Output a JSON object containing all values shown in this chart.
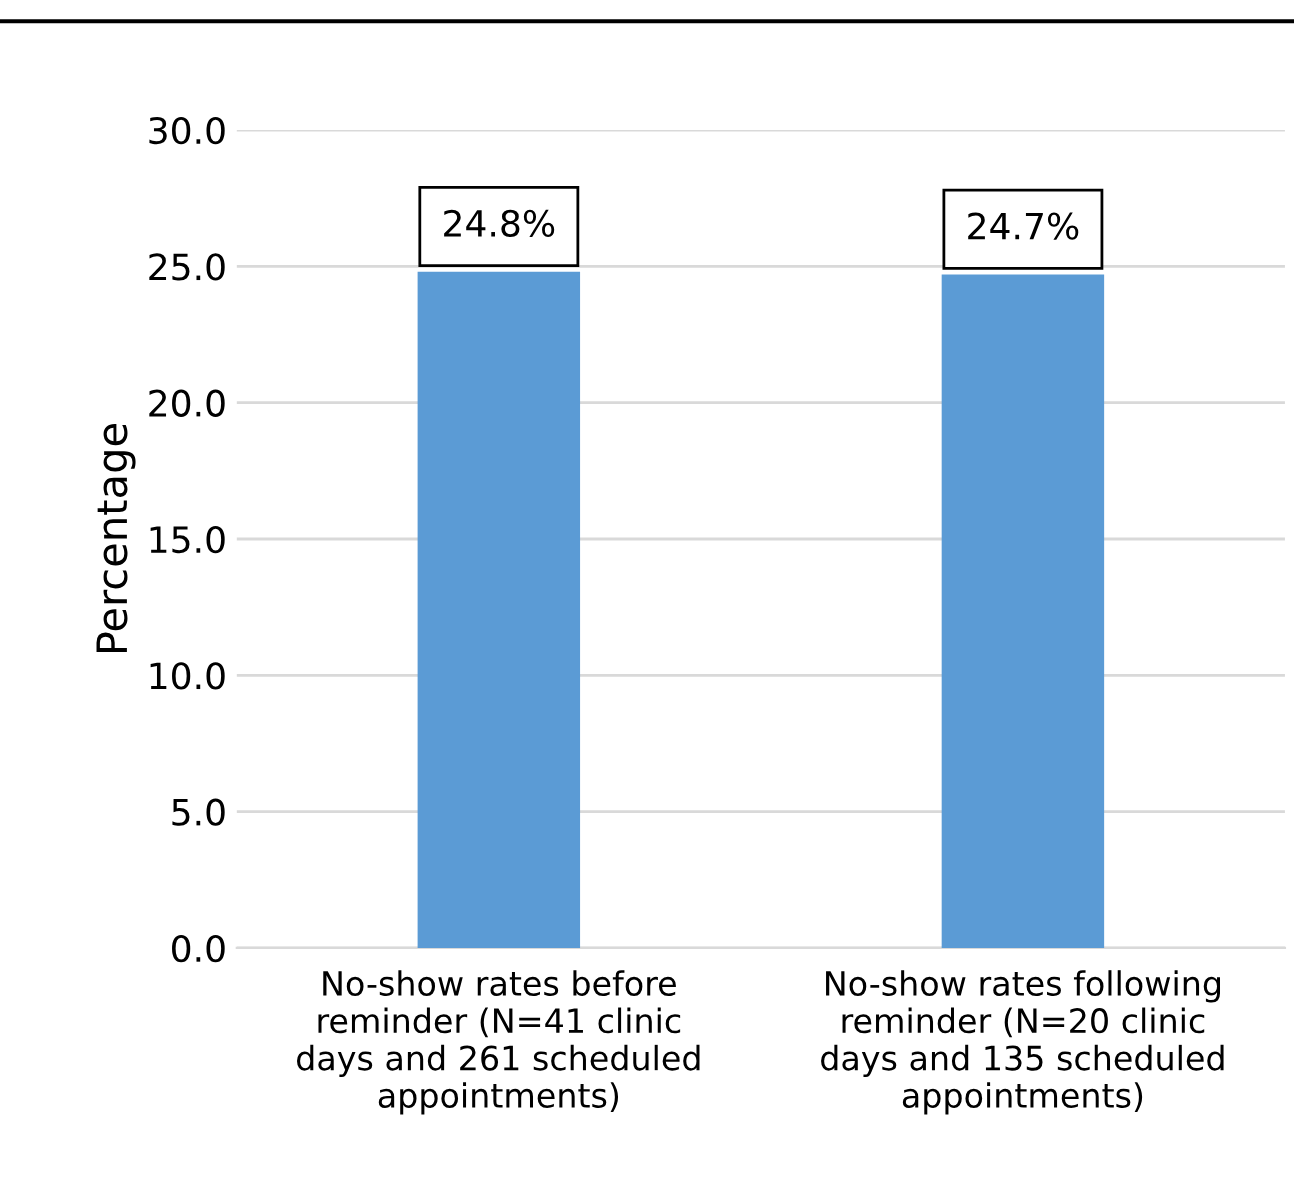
{
  "chart_data": {
    "type": "bar",
    "ylabel": "Percentage",
    "categories": [
      "No-show rates before\nreminder (N=41 clinic\ndays and 261 scheduled\nappointments)",
      "No-show rates following\nreminder (N=20 clinic\ndays and 135 scheduled\nappointments)"
    ],
    "values": [
      24.8,
      24.7
    ],
    "color": "#5b9bd5",
    "value_labels": [
      "24.8%",
      "24.7%"
    ],
    "ylim": [
      0,
      30
    ],
    "yticks": [
      {
        "value": 0,
        "label": "0.0"
      },
      {
        "value": 5,
        "label": "5.0"
      },
      {
        "value": 10,
        "label": "10.0"
      },
      {
        "value": 15,
        "label": "15.0"
      },
      {
        "value": 20,
        "label": "20.0"
      },
      {
        "value": 25,
        "label": "25.0"
      },
      {
        "value": 30,
        "label": "30.0"
      }
    ],
    "grid": "y"
  }
}
